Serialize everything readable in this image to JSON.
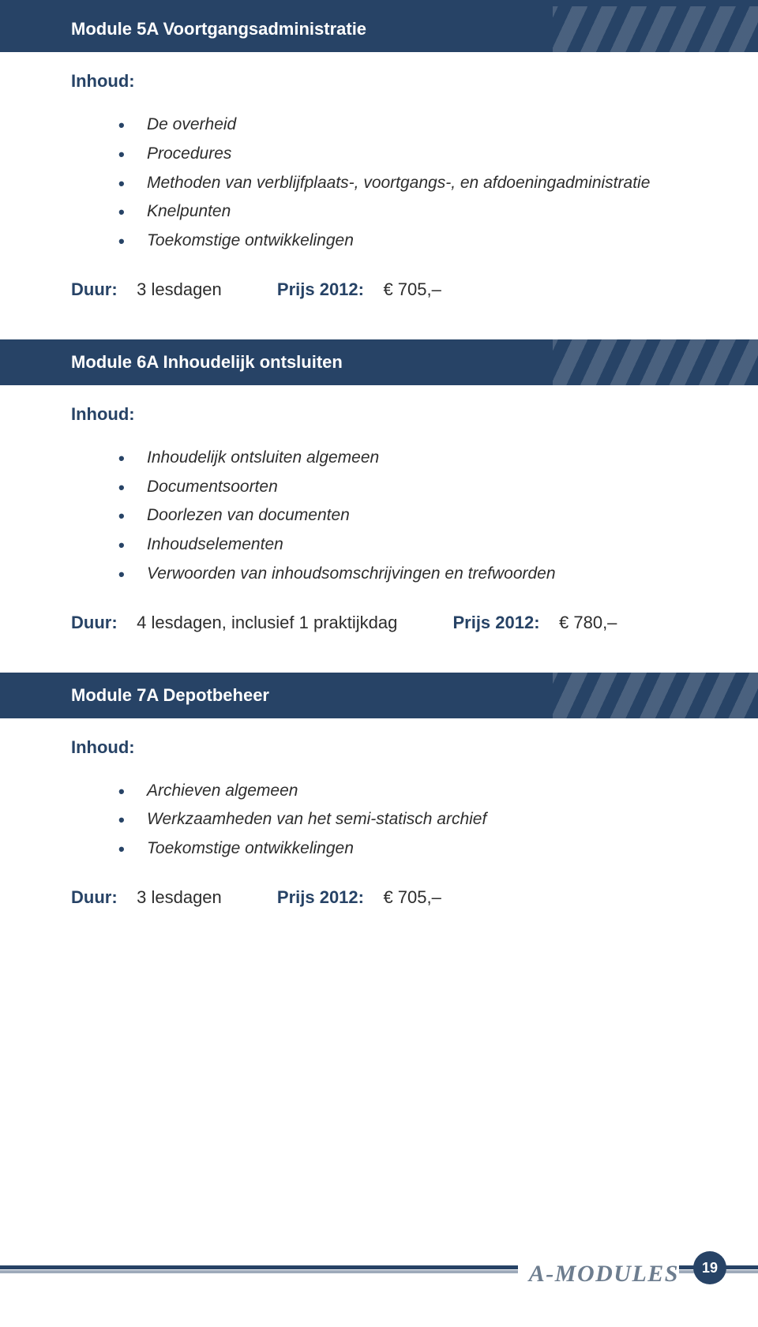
{
  "colors": {
    "brand": "#274366",
    "text": "#2d2d2d",
    "footer_label": "#6d7d8f",
    "background": "#ffffff"
  },
  "modules": [
    {
      "title": "Module 5A Voortgangsadministratie",
      "section_label": "Inhoud:",
      "items": [
        "De overheid",
        "Procedures",
        "Methoden van verblijfplaats-, voortgangs-, en afdoeningadministratie",
        "Knelpunten",
        "Toekomstige ontwikkelingen"
      ],
      "duur_label": "Duur:",
      "duur_value": "3 lesdagen",
      "price_label": "Prijs 2012:",
      "price_value": "€ 705,–"
    },
    {
      "title": "Module 6A Inhoudelijk ontsluiten",
      "section_label": "Inhoud:",
      "items": [
        "Inhoudelijk ontsluiten algemeen",
        "Documentsoorten",
        "Doorlezen van documenten",
        "Inhoudselementen",
        "Verwoorden van inhoudsomschrijvingen en trefwoorden"
      ],
      "duur_label": "Duur:",
      "duur_value": "4 lesdagen, inclusief 1 praktijkdag",
      "price_label": "Prijs 2012:",
      "price_value": "€ 780,–"
    },
    {
      "title": "Module 7A Depotbeheer",
      "section_label": "Inhoud:",
      "items": [
        "Archieven algemeen",
        "Werkzaamheden van het semi-statisch archief",
        "Toekomstige ontwikkelingen"
      ],
      "duur_label": "Duur:",
      "duur_value": "3 lesdagen",
      "price_label": "Prijs 2012:",
      "price_value": "€ 705,–"
    }
  ],
  "footer": {
    "label": "A-MODULES",
    "page_number": "19"
  }
}
